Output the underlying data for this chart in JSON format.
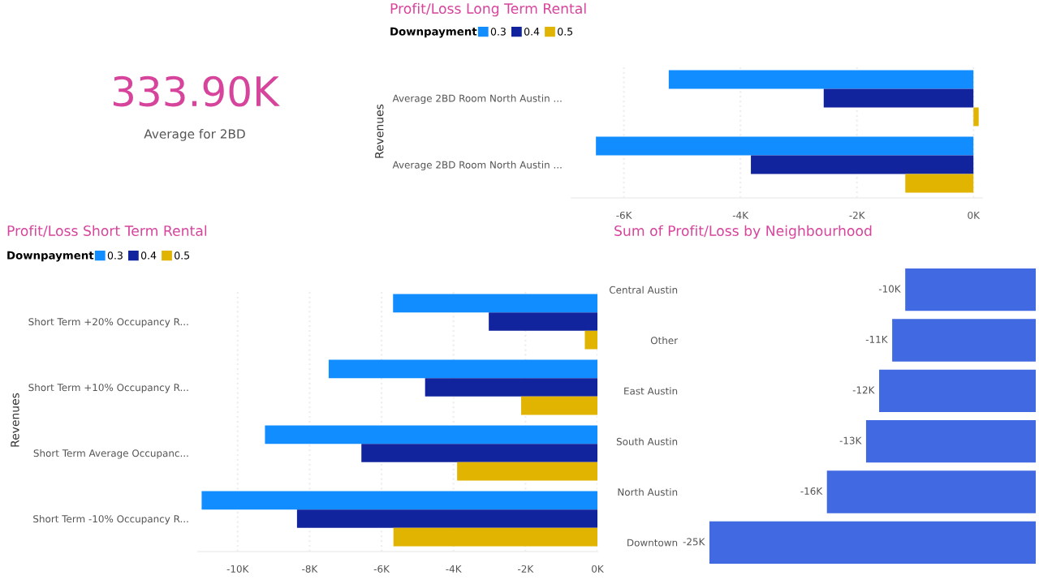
{
  "chart_data": [
    {
      "type": "other",
      "categories": [
        "Average for 2BD"
      ],
      "values": [
        333900
      ],
      "value_labels": [
        "333.90K"
      ],
      "color": "#d6449c"
    },
    {
      "type": "bar",
      "orientation": "horizontal",
      "title": "Profit/Loss Long Term Rental",
      "ylabel": "Revenues",
      "legend_title": "Downpayment",
      "legend": "top left",
      "grid": "x",
      "categories": [
        "Average 2BD Room North Austin ...",
        "Average 2BD Room North Austin ..."
      ],
      "series": [
        {
          "name": "0.3",
          "color": "#118dff",
          "values": [
            -5230,
            -6480
          ]
        },
        {
          "name": "0.4",
          "color": "#12239e",
          "values": [
            -2570,
            -3820
          ]
        },
        {
          "name": "0.5",
          "color": "#e0b400",
          "values": [
            90,
            -1170
          ]
        }
      ],
      "xlim": [
        -6900,
        150
      ],
      "xticks": [
        {
          "value": -6000,
          "label": "-6K"
        },
        {
          "value": -4000,
          "label": "-4K"
        },
        {
          "value": -2000,
          "label": "-2K"
        },
        {
          "value": 0,
          "label": "0K"
        }
      ]
    },
    {
      "type": "bar",
      "orientation": "horizontal",
      "title": "Profit/Loss Short Term Rental",
      "ylabel": "Revenues",
      "legend_title": "Downpayment",
      "legend": "top left",
      "grid": "x",
      "categories": [
        "Short Term +20% Occupancy R...",
        "Short Term +10% Occupancy R...",
        "Short Term Average Occupanc...",
        "Short Term -10% Occupancy R..."
      ],
      "series": [
        {
          "name": "0.3",
          "color": "#118dff",
          "values": [
            -5680,
            -7470,
            -9240,
            -11000
          ]
        },
        {
          "name": "0.4",
          "color": "#12239e",
          "values": [
            -3020,
            -4790,
            -6560,
            -8350
          ]
        },
        {
          "name": "0.5",
          "color": "#e0b400",
          "values": [
            -350,
            -2120,
            -3900,
            -5670
          ]
        }
      ],
      "xlim": [
        -11100,
        0
      ],
      "xticks": [
        {
          "value": -10000,
          "label": "-10K"
        },
        {
          "value": -8000,
          "label": "-8K"
        },
        {
          "value": -6000,
          "label": "-6K"
        },
        {
          "value": -4000,
          "label": "-4K"
        },
        {
          "value": -2000,
          "label": "-2K"
        },
        {
          "value": 0,
          "label": "0K"
        }
      ]
    },
    {
      "type": "bar",
      "orientation": "horizontal",
      "title": "Sum of Profit/Loss by Neighbourhood",
      "tick_labels": "y",
      "categories": [
        "Central Austin",
        "Other",
        "East Austin",
        "South Austin",
        "North Austin",
        "Downtown"
      ],
      "values": [
        -10000,
        -11000,
        -12000,
        -13000,
        -16000,
        -25000
      ],
      "color": "#4169e1",
      "value_labels": [
        "-10K",
        "-11K",
        "-12K",
        "-13K",
        "-16K",
        "-25K"
      ],
      "xlim": [
        -25000,
        0
      ]
    }
  ]
}
